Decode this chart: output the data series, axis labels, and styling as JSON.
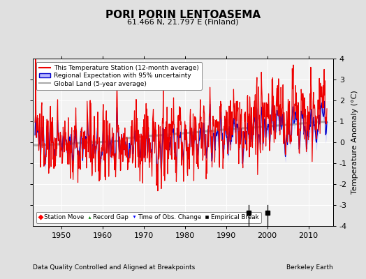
{
  "title": "PORI PORIN LENTOASEMA",
  "subtitle": "61.466 N, 21.797 E (Finland)",
  "ylabel": "Temperature Anomaly (°C)",
  "xlabel_bottom": "Data Quality Controlled and Aligned at Breakpoints",
  "xlabel_right": "Berkeley Earth",
  "ylim": [
    -4,
    4
  ],
  "xlim": [
    1943,
    2016
  ],
  "xticks": [
    1950,
    1960,
    1970,
    1980,
    1990,
    2000,
    2010
  ],
  "yticks_left": [
    -3,
    -2,
    -1,
    0,
    1,
    2,
    3
  ],
  "yticks_right": [
    -4,
    -3,
    -2,
    -1,
    0,
    1,
    2,
    3,
    4
  ],
  "background_color": "#e0e0e0",
  "plot_bg_color": "#f2f2f2",
  "grid_color": "#ffffff",
  "station_line_color": "#ee0000",
  "regional_line_color": "#0000cc",
  "regional_fill_color": "#b8b8ff",
  "global_line_color": "#aaaaaa",
  "empirical_breaks": [
    1995.5,
    2000.0
  ],
  "seed": 137,
  "start_year": 1943.5,
  "end_year": 2014.5,
  "n_months": 852
}
